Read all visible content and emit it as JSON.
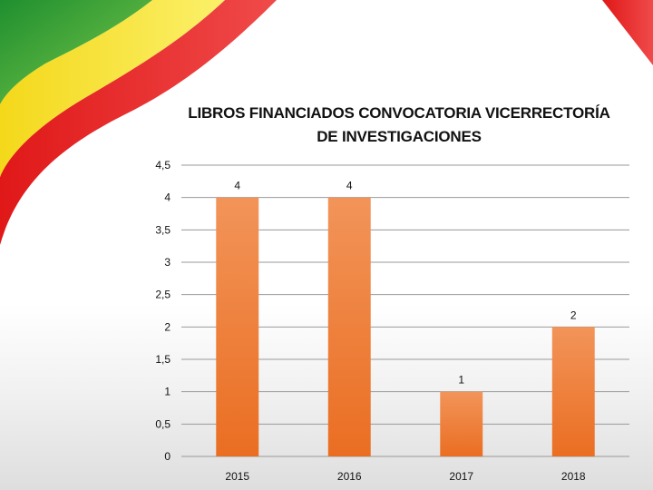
{
  "chart_data": {
    "type": "bar",
    "title_lines": [
      "LIBROS FINANCIADOS CONVOCATORIA VICERRECTORÍA",
      "DE INVESTIGACIONES"
    ],
    "categories": [
      "2015",
      "2016",
      "2017",
      "2018"
    ],
    "values": [
      4,
      4,
      1,
      2
    ],
    "data_labels": [
      "4",
      "4",
      "1",
      "2"
    ],
    "y_ticks": [
      "0",
      "0,5",
      "1",
      "1,5",
      "2",
      "2,5",
      "3",
      "3,5",
      "4",
      "4,5"
    ],
    "ylim": [
      0,
      4.5
    ],
    "ystep": 0.5,
    "grid": true,
    "legend": "none",
    "bar_color": "#ee7d3b"
  },
  "decor": {
    "flag_colors": [
      "#2e9e3a",
      "#f6e51d",
      "#e8201f"
    ]
  }
}
